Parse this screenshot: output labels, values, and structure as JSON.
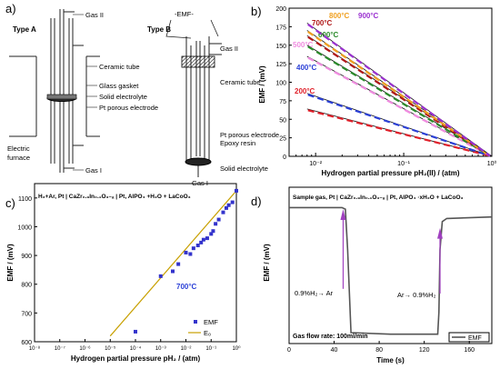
{
  "panels": {
    "a": {
      "letter": "a)",
      "typeA": "Type A",
      "typeB": "Type B",
      "emf": "-EMF-",
      "labelsA": [
        "Gas II",
        "Ceramic tube",
        "Glass gasket",
        "Solid electrolyte",
        "Pt porous electrode",
        "Gas I"
      ],
      "furnace": [
        "Electric",
        "furnace"
      ],
      "labelsB": [
        "Gas II",
        "Ceramic tube",
        "Pt porous electrode",
        "Epoxy resin",
        "Solid electrolyte",
        "Gas I"
      ]
    },
    "b": {
      "letter": "b)",
      "ylabel": "EMF / (mV)",
      "xlabel": "Hydrogen partial pressure pH₂(II) / (atm)",
      "xticks_text": [
        "10⁻²",
        "10⁻¹",
        "10⁰"
      ]
    },
    "c": {
      "letter": "c)",
      "ylabel": "EMF / (mV)",
      "xlabel": "Hydrogen partial pressure pH₂ / (atm)",
      "cell": "H₂+Ar, Pt | CaZr₀.₉In₀.₁O₃₋ₐ | Pt, AlPO₄ +H₂O + LaCoO₃",
      "temp": "700°C",
      "xticks_text": [
        "10⁻⁸",
        "10⁻⁷",
        "10⁻⁶",
        "10⁻⁵",
        "10⁻⁴",
        "10⁻³",
        "10⁻²",
        "10⁻¹",
        "10⁰"
      ]
    },
    "d": {
      "letter": "d)",
      "ylabel": "EMF / (mV)",
      "xlabel": "Time (s)",
      "cell": "Sample gas, Pt | CaZr₀.₉In₀.₁O₃₋ₐ | Pt, AlPO₄ ·xH₂O + LaCoO₃",
      "ann1": "0.9%H₂→ Ar",
      "ann2": "Ar→ 0.9%H₂",
      "flow": "Gas flow rate: 100ml/min"
    }
  },
  "chart_data": [
    {
      "type": "line",
      "panel": "b",
      "xlabel": "Hydrogen partial pressure pH₂(II) / (atm)",
      "ylabel": "EMF / (mV)",
      "xscale": "log",
      "xlim": [
        0.005,
        1
      ],
      "ylim": [
        0,
        200
      ],
      "yticks": [
        0,
        25,
        50,
        75,
        100,
        125,
        150,
        175,
        200
      ],
      "grid": false,
      "series": [
        {
          "name": "200°C",
          "color": "#e0202a",
          "x": [
            0.008,
            1
          ],
          "y": [
            64,
            0
          ]
        },
        {
          "name": "400°C",
          "color": "#2a3fd6",
          "x": [
            0.008,
            1
          ],
          "y": [
            85,
            0
          ]
        },
        {
          "name": "500°C",
          "color": "#f08ce0",
          "x": [
            0.008,
            1
          ],
          "y": [
            135,
            0
          ]
        },
        {
          "name": "600°C",
          "color": "#2a8a2a",
          "x": [
            0.008,
            1
          ],
          "y": [
            150,
            0
          ]
        },
        {
          "name": "700°C",
          "color": "#b01818",
          "x": [
            0.008,
            1
          ],
          "y": [
            163,
            0
          ]
        },
        {
          "name": "800°C",
          "color": "#f0a020",
          "x": [
            0.008,
            1
          ],
          "y": [
            170,
            0
          ]
        },
        {
          "name": "900°C",
          "color": "#9a30d0",
          "x": [
            0.008,
            1
          ],
          "y": [
            180,
            0
          ]
        }
      ]
    },
    {
      "type": "scatter",
      "panel": "c",
      "xlabel": "Hydrogen partial pressure pH₂ / (atm)",
      "ylabel": "EMF / (mV)",
      "xscale": "log",
      "xlim": [
        1e-08,
        1
      ],
      "ylim": [
        600,
        1150
      ],
      "yticks": [
        600,
        700,
        800,
        900,
        1000,
        1100
      ],
      "legend": "bottom-right",
      "series": [
        {
          "name": "EMF",
          "color": "#3333cc",
          "x": [
            0.0001,
            0.001,
            0.003,
            0.005,
            0.01,
            0.015,
            0.02,
            0.03,
            0.04,
            0.05,
            0.07,
            0.1,
            0.12,
            0.15,
            0.2,
            0.3,
            0.4,
            0.5,
            0.7,
            1.0
          ],
          "y": [
            635,
            828,
            845,
            870,
            910,
            905,
            925,
            935,
            945,
            955,
            960,
            975,
            985,
            1010,
            1025,
            1050,
            1065,
            1075,
            1085,
            1125
          ]
        },
        {
          "name": "E₀",
          "color": "#c8a000",
          "x": [
            1e-05,
            1
          ],
          "y": [
            620,
            1125
          ]
        }
      ]
    },
    {
      "type": "line",
      "panel": "d",
      "xlabel": "Time (s)",
      "ylabel": "EMF / (mV)",
      "xlim": [
        0,
        180
      ],
      "ylim": [
        0,
        1.0
      ],
      "xticks": [
        0,
        40,
        80,
        120,
        160
      ],
      "legend": "bottom-right",
      "series": [
        {
          "name": "EMF",
          "color": "#555555",
          "x": [
            0,
            47,
            50,
            52,
            55,
            90,
            120,
            132,
            133,
            134,
            136,
            140,
            180
          ],
          "y": [
            0.87,
            0.87,
            0.86,
            0.6,
            0.07,
            0.06,
            0.06,
            0.06,
            0.2,
            0.6,
            0.78,
            0.8,
            0.81
          ]
        }
      ]
    }
  ]
}
